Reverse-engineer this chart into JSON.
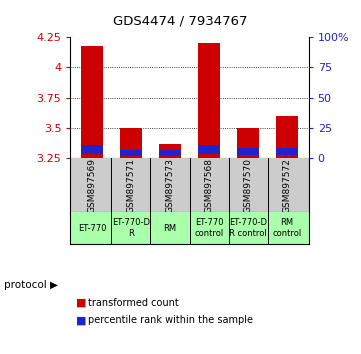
{
  "title": "GDS4474 / 7934767",
  "samples": [
    "GSM897569",
    "GSM897571",
    "GSM897573",
    "GSM897568",
    "GSM897570",
    "GSM897572"
  ],
  "red_bar_tops": [
    4.18,
    3.5,
    3.37,
    4.2,
    3.5,
    3.6
  ],
  "red_bar_bottoms": [
    3.25,
    3.25,
    3.25,
    3.25,
    3.25,
    3.25
  ],
  "blue_bar_tops": [
    3.355,
    3.315,
    3.315,
    3.355,
    3.335,
    3.335
  ],
  "blue_bar_bottoms": [
    3.285,
    3.27,
    3.27,
    3.285,
    3.275,
    3.275
  ],
  "ylim": [
    3.25,
    4.25
  ],
  "yticks_left": [
    3.25,
    3.5,
    3.75,
    4.0,
    4.25
  ],
  "ytick_labels_left": [
    "3.25",
    "3.5",
    "3.75",
    "4",
    "4.25"
  ],
  "yticks_right_pct": [
    0,
    25,
    50,
    75,
    100
  ],
  "ytick_labels_right": [
    "0",
    "25",
    "50",
    "75",
    "100%"
  ],
  "protocols": [
    "ET-770",
    "ET-770-D\nR",
    "RM",
    "ET-770\ncontrol",
    "ET-770-D\nR control",
    "RM\ncontrol"
  ],
  "protocol_label": "protocol",
  "bar_width": 0.55,
  "red_color": "#CC0000",
  "blue_color": "#2222CC",
  "bg_sample_labels": "#cccccc",
  "bg_protocol": "#aaffaa",
  "dotted_yticks": [
    3.5,
    3.75,
    4.0
  ],
  "legend_red": "transformed count",
  "legend_blue": "percentile rank within the sample"
}
